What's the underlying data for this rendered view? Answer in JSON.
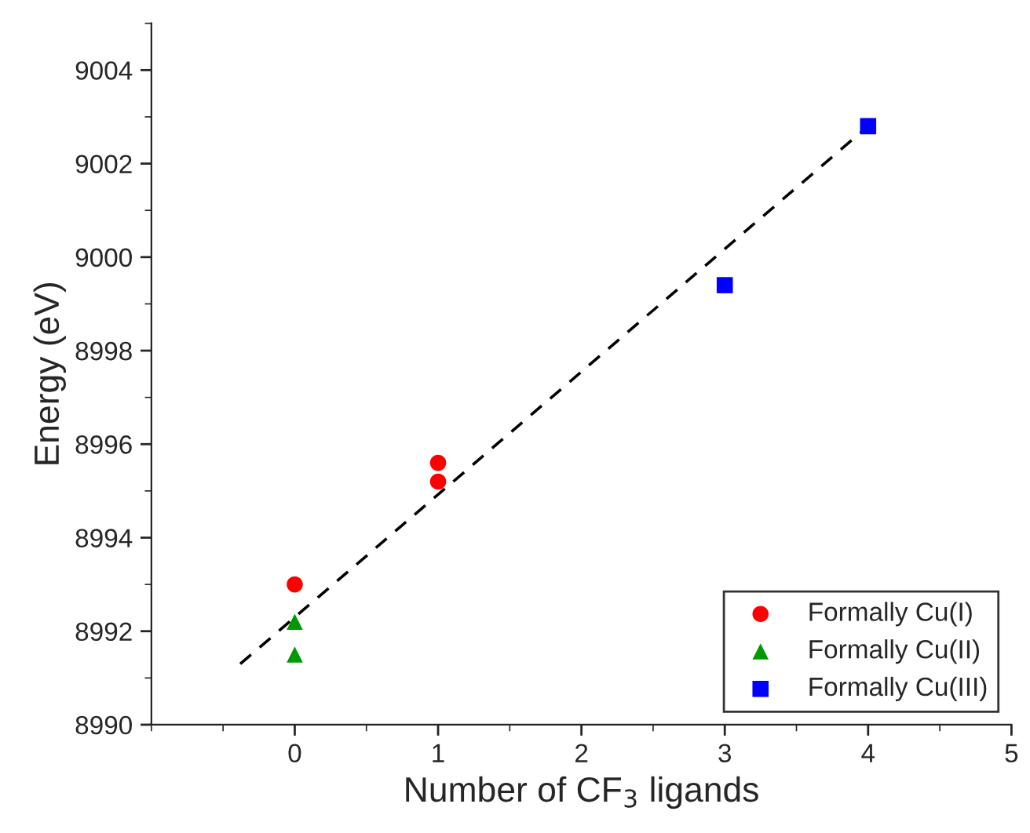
{
  "chart_data": {
    "type": "scatter",
    "xlabel": "Number of CF$_{3}$ ligands",
    "ylabel": "Energy (eV)",
    "xlim": [
      -1,
      5
    ],
    "xticks": [
      0,
      1,
      2,
      3,
      4,
      5
    ],
    "ylim": [
      8990,
      9005
    ],
    "yticks": [
      8990,
      8992,
      8994,
      8996,
      8998,
      9000,
      9002,
      9004
    ],
    "legend": "bottom right",
    "grid": false,
    "series": [
      {
        "name": "Formally Cu(I)",
        "color": "#ff0000",
        "marker": "circle",
        "x": [
          0,
          1,
          1
        ],
        "values": [
          8993.0,
          8995.6,
          8995.2
        ]
      },
      {
        "name": "Formally Cu(II)",
        "color": "#009900",
        "marker": "triangle",
        "x": [
          0,
          0
        ],
        "values": [
          8992.2,
          8991.5
        ]
      },
      {
        "name": "Formally Cu(III)",
        "color": "#0000ff",
        "marker": "square",
        "x": [
          3,
          4
        ],
        "values": [
          8999.4,
          9002.8
        ]
      },
      {
        "type": "line",
        "color": "#000000",
        "line_style": "dashed",
        "marker": "none",
        "x": [
          -0.38,
          4
        ],
        "values": [
          8991.3,
          9002.8
        ]
      }
    ]
  }
}
